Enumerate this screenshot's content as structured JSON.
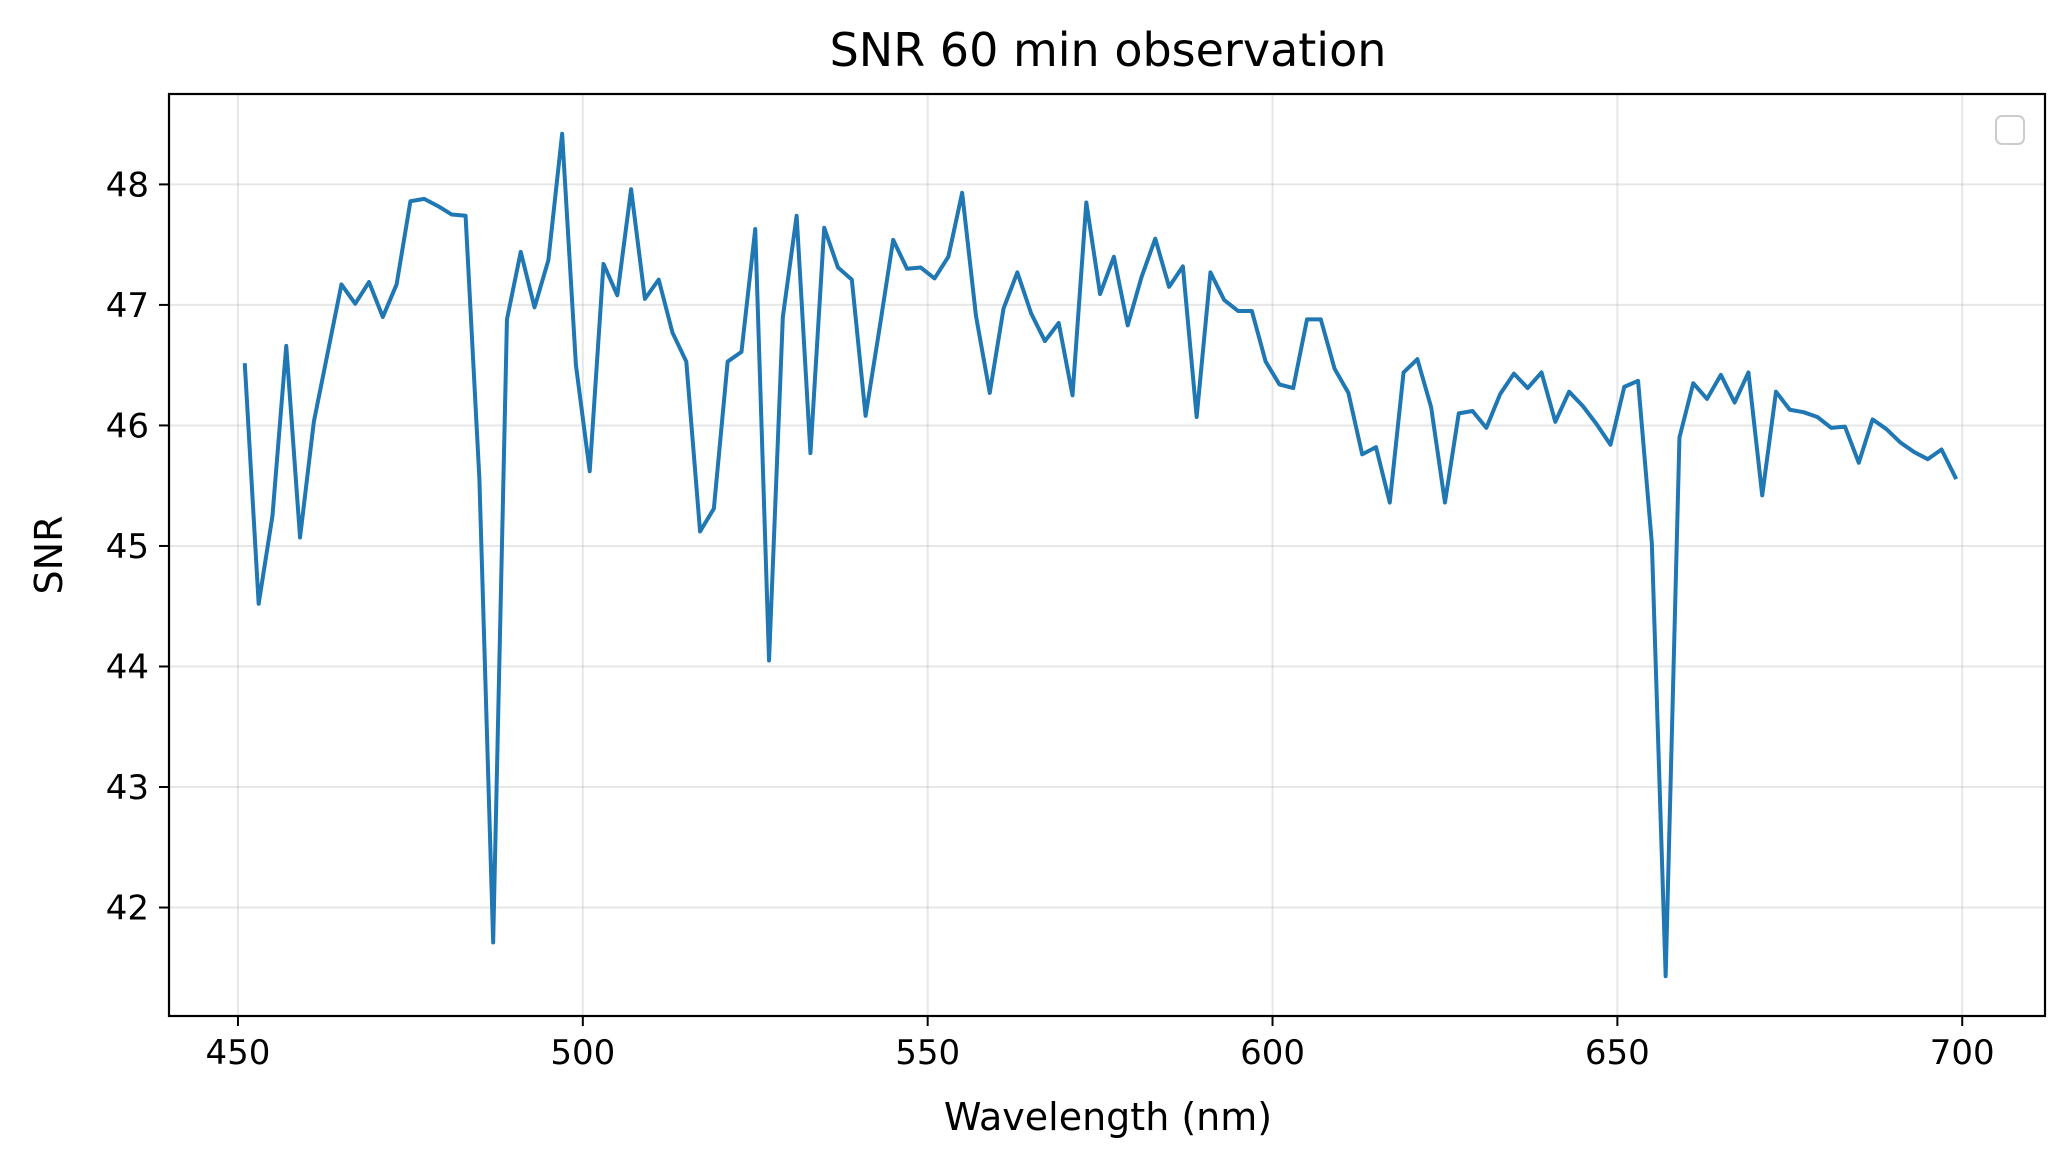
{
  "chart_data": {
    "type": "line",
    "title": "SNR 60 min observation",
    "xlabel": "Wavelength (nm)",
    "ylabel": "SNR",
    "xlim": [
      440,
      712
    ],
    "ylim": [
      41.1,
      48.75
    ],
    "xticks": [
      450,
      500,
      550,
      600,
      650,
      700
    ],
    "yticks": [
      42,
      43,
      44,
      45,
      46,
      47,
      48
    ],
    "grid": true,
    "legend": "top-right (empty)",
    "line_color": "#1f77b4",
    "series": [
      {
        "x": [
          451,
          453,
          455,
          457,
          459,
          461,
          463,
          465,
          467,
          469,
          471,
          473,
          475,
          477,
          479,
          481,
          483,
          485,
          487,
          489,
          491,
          493,
          495,
          497,
          499,
          501,
          503,
          505,
          507,
          509,
          511,
          513,
          515,
          517,
          519,
          521,
          523,
          525,
          527,
          529,
          531,
          533,
          535,
          537,
          539,
          541,
          543,
          545,
          547,
          549,
          551,
          553,
          555,
          557,
          559,
          561,
          563,
          565,
          567,
          569,
          571,
          573,
          575,
          577,
          579,
          581,
          583,
          585,
          587,
          589,
          591,
          593,
          595,
          597,
          599,
          601,
          603,
          605,
          607,
          609,
          611,
          613,
          615,
          617,
          619,
          621,
          623,
          625,
          627,
          629,
          631,
          633,
          635,
          637,
          639,
          641,
          643,
          645,
          647,
          649,
          651,
          653,
          655,
          657,
          659,
          661,
          663,
          665,
          667,
          669,
          671,
          673,
          675,
          677,
          679,
          681,
          683,
          685,
          687,
          689,
          691,
          693,
          695,
          697,
          699
        ],
        "values": [
          46.5,
          44.52,
          45.25,
          46.66,
          45.07,
          46.03,
          46.6,
          47.17,
          47.01,
          47.19,
          46.9,
          47.17,
          47.86,
          47.88,
          47.82,
          47.75,
          47.74,
          45.56,
          41.71,
          46.88,
          47.44,
          46.98,
          47.37,
          48.42,
          46.5,
          45.62,
          47.34,
          47.08,
          47.96,
          47.05,
          47.21,
          46.77,
          46.53,
          45.12,
          45.31,
          46.53,
          46.61,
          47.63,
          44.05,
          46.9,
          47.74,
          45.77,
          47.64,
          47.31,
          47.21,
          46.08,
          46.8,
          47.54,
          47.3,
          47.31,
          47.22,
          47.4,
          47.93,
          46.91,
          46.27,
          46.97,
          47.27,
          46.93,
          46.7,
          46.85,
          46.25,
          47.85,
          47.09,
          47.4,
          46.83,
          47.23,
          47.55,
          47.15,
          47.32,
          46.07,
          47.27,
          47.04,
          46.95,
          46.95,
          46.53,
          46.34,
          46.31,
          46.88,
          46.88,
          46.47,
          46.27,
          45.76,
          45.82,
          45.36,
          46.44,
          46.55,
          46.15,
          45.36,
          46.1,
          46.12,
          45.98,
          46.26,
          46.43,
          46.31,
          46.44,
          46.03,
          46.28,
          46.16,
          46.01,
          45.84,
          46.32,
          46.37,
          45.02,
          41.43,
          45.9,
          46.35,
          46.22,
          46.42,
          46.19,
          46.44,
          45.42,
          46.28,
          46.13,
          46.11,
          46.07,
          45.98,
          45.99,
          45.69,
          46.05,
          45.97,
          45.86,
          45.78,
          45.72,
          45.8,
          45.57
        ]
      }
    ]
  }
}
